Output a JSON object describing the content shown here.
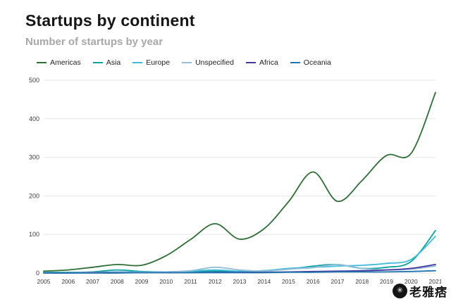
{
  "header": {
    "title": "Startups by continent",
    "subtitle": "Number of startups by year"
  },
  "watermark": {
    "text": "老雅痞"
  },
  "chart_data": {
    "type": "line",
    "title": "Startups by continent",
    "subtitle": "Number of startups by year",
    "x": [
      2005,
      2006,
      2007,
      2008,
      2009,
      2010,
      2011,
      2012,
      2013,
      2014,
      2015,
      2016,
      2017,
      2018,
      2019,
      2020,
      2021
    ],
    "series": [
      {
        "name": "Americas",
        "color": "#2d6e35",
        "values": [
          5,
          8,
          15,
          22,
          20,
          45,
          87,
          128,
          88,
          115,
          185,
          262,
          186,
          240,
          305,
          310,
          468
        ]
      },
      {
        "name": "Asia",
        "color": "#0aa3a0",
        "values": [
          2,
          2,
          3,
          8,
          4,
          3,
          4,
          5,
          4,
          6,
          10,
          18,
          22,
          12,
          15,
          30,
          110
        ]
      },
      {
        "name": "Europe",
        "color": "#3fbcdc",
        "values": [
          1,
          1,
          2,
          3,
          3,
          3,
          5,
          8,
          5,
          6,
          12,
          15,
          18,
          20,
          25,
          35,
          95
        ]
      },
      {
        "name": "Unspecified",
        "color": "#94bdd6",
        "values": [
          1,
          1,
          2,
          2,
          2,
          3,
          6,
          15,
          8,
          5,
          10,
          14,
          22,
          12,
          8,
          10,
          18
        ]
      },
      {
        "name": "Africa",
        "color": "#4438a0",
        "values": [
          0,
          0,
          1,
          1,
          1,
          1,
          1,
          2,
          2,
          2,
          3,
          4,
          5,
          6,
          8,
          12,
          22
        ]
      },
      {
        "name": "Oceania",
        "color": "#2176ae",
        "values": [
          0,
          0,
          0,
          0,
          1,
          1,
          1,
          1,
          1,
          1,
          2,
          2,
          3,
          3,
          3,
          4,
          6
        ]
      }
    ],
    "ylim": [
      0,
      500
    ],
    "yticks": [
      0,
      100,
      200,
      300,
      400,
      500
    ],
    "grid": true,
    "legend_position": "top",
    "xlabel": "",
    "ylabel": ""
  }
}
